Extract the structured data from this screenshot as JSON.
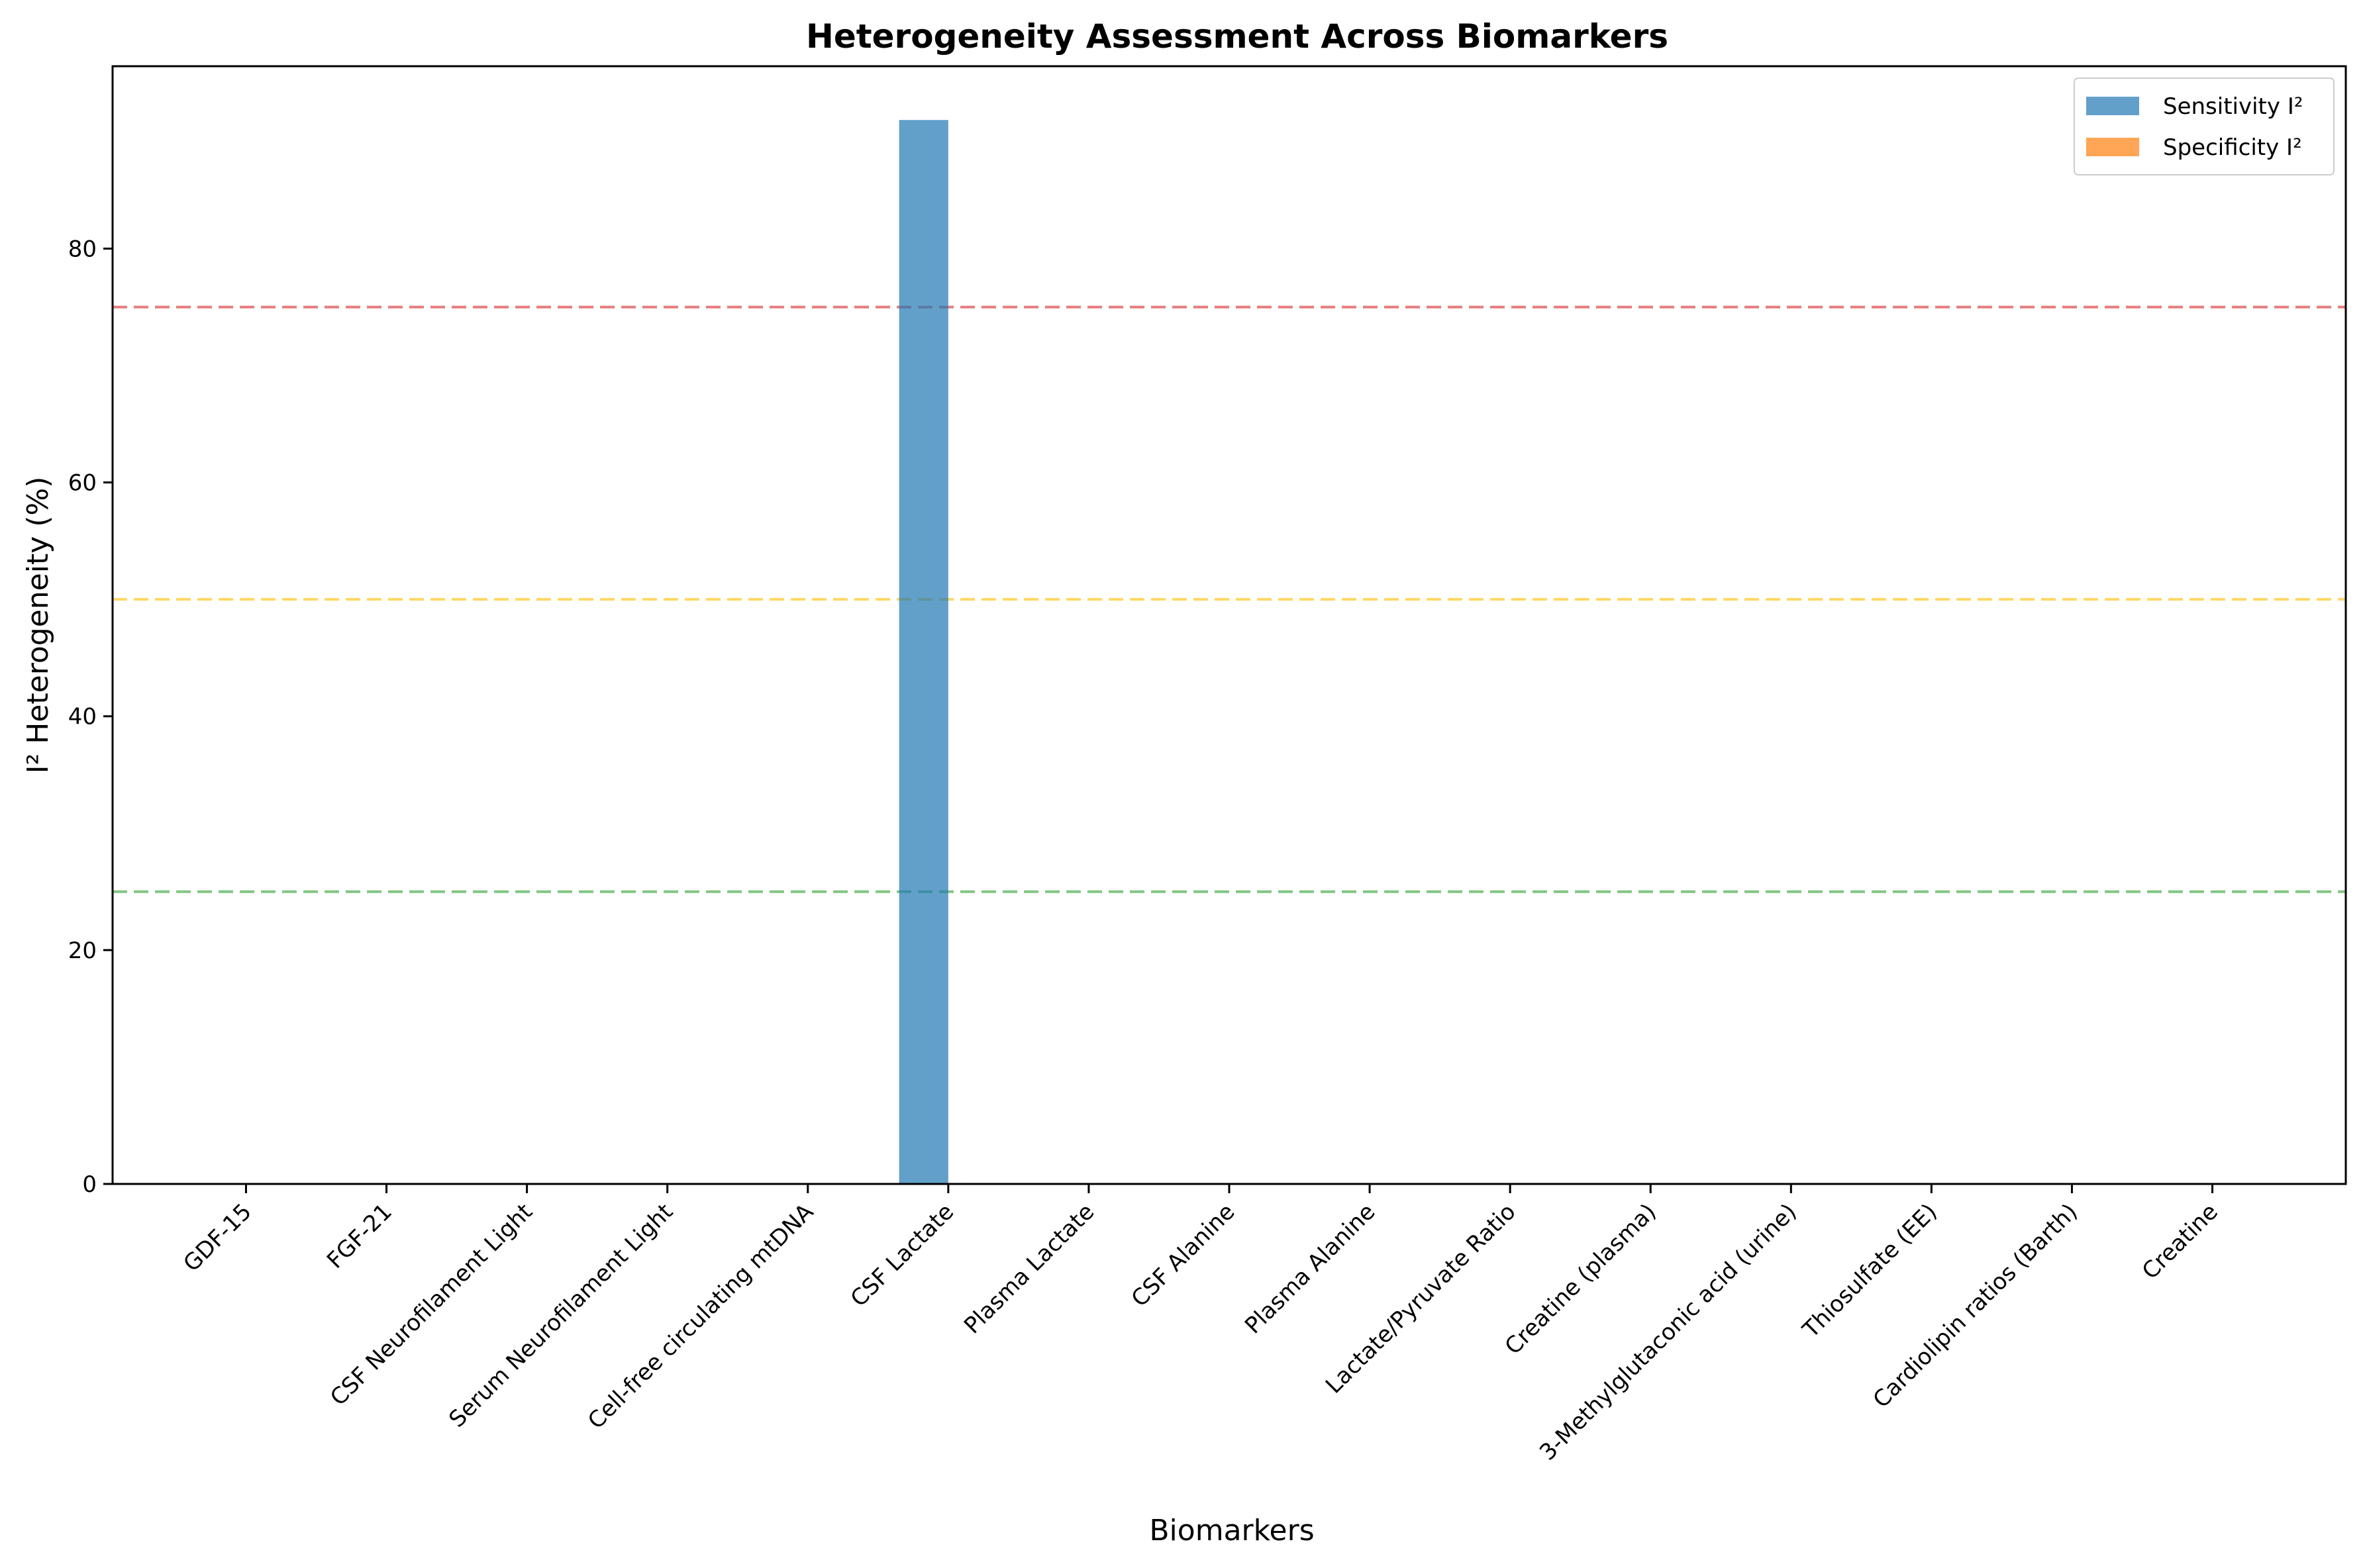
{
  "chart_data": {
    "type": "bar",
    "title": "Heterogeneity Assessment Across Biomarkers",
    "xlabel": "Biomarkers",
    "ylabel": "I² Heterogeneity (%)",
    "ylim": [
      0,
      95.6
    ],
    "yticks": [
      0,
      20,
      40,
      60,
      80
    ],
    "grid": false,
    "legend_position": "top-right",
    "categories": [
      "GDF-15",
      "FGF-21",
      "CSF Neurofilament Light",
      "Serum Neurofilament Light",
      "Cell-free circulating mtDNA",
      "CSF Lactate",
      "Plasma Lactate",
      "CSF Alanine",
      "Plasma Alanine",
      "Lactate/Pyruvate Ratio",
      "Creatine (plasma)",
      "3-Methylglutaconic acid (urine)",
      "Thiosulfate (EE)",
      "Cardiolipin ratios (Barth)",
      "Creatine"
    ],
    "series": [
      {
        "name": "Sensitivity I²",
        "color": "#1f77b4",
        "values": [
          0,
          0,
          0,
          0,
          0,
          91,
          0,
          0,
          0,
          0,
          0,
          0,
          0,
          0,
          0
        ]
      },
      {
        "name": "Specificity I²",
        "color": "#ff7f0e",
        "values": [
          0,
          0,
          0,
          0,
          0,
          0,
          0,
          0,
          0,
          0,
          0,
          0,
          0,
          0,
          0
        ]
      }
    ],
    "reference_lines": [
      {
        "y": 25,
        "color": "#2ca02c"
      },
      {
        "y": 50,
        "color": "#ffbf00"
      },
      {
        "y": 75,
        "color": "#d62728"
      }
    ]
  }
}
